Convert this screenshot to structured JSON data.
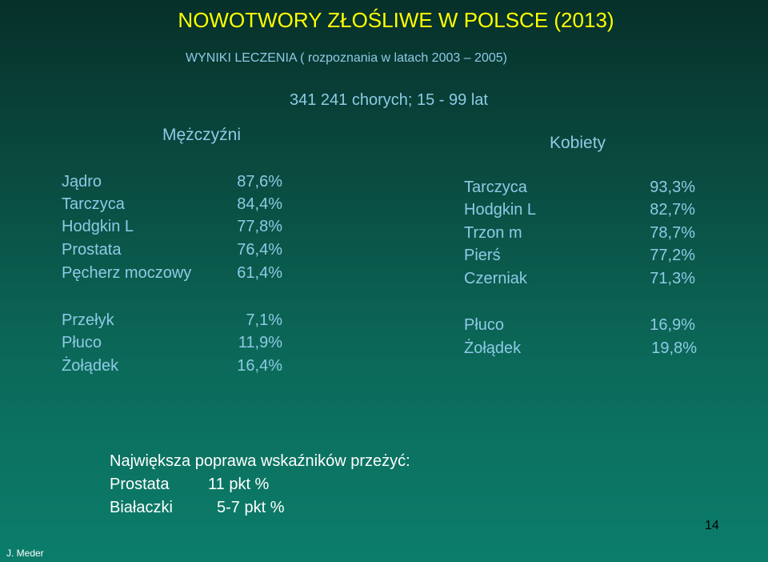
{
  "title": "NOWOTWORY ZŁOŚLIWE W POLSCE (2013)",
  "subtitle": "WYNIKI   LECZENIA  ( rozpoznania  w  latach 2003 – 2005)",
  "patients": "341 241 chorych; 15 - 99 lat",
  "men": {
    "label": "Mężczyźni",
    "best": [
      {
        "name": "Jądro",
        "value": "87,6%"
      },
      {
        "name": "Tarczyca",
        "value": "84,4%"
      },
      {
        "name": "Hodgkin L",
        "value": "77,8%"
      },
      {
        "name": "Prostata",
        "value": "76,4%"
      },
      {
        "name": "Pęcherz moczowy",
        "value": "61,4%"
      }
    ],
    "worst": [
      {
        "name": "Przełyk",
        "value": "7,1%"
      },
      {
        "name": "Płuco",
        "value": "11,9%"
      },
      {
        "name": "Żołądek",
        "value": "16,4%"
      }
    ]
  },
  "women": {
    "label": "Kobiety",
    "best": [
      {
        "name": "Tarczyca",
        "value": "93,3%"
      },
      {
        "name": "Hodgkin L",
        "value": "82,7%"
      },
      {
        "name": "Trzon m",
        "value": "78,7%"
      },
      {
        "name": "Pierś",
        "value": "77,2%"
      },
      {
        "name": "Czerniak",
        "value": "71,3%"
      }
    ],
    "worst": [
      {
        "name": "Płuco",
        "value": "16,9%"
      },
      {
        "name": "Żołądek",
        "value": "19,8%"
      }
    ]
  },
  "improvement": {
    "heading": "Największa poprawa wskaźników przeżyć:",
    "items": [
      {
        "name": "Prostata",
        "value": "11 pkt %"
      },
      {
        "name": "Białaczki",
        "value": "5-7 pkt %"
      }
    ]
  },
  "author": "J. Meder",
  "page_number": "14"
}
